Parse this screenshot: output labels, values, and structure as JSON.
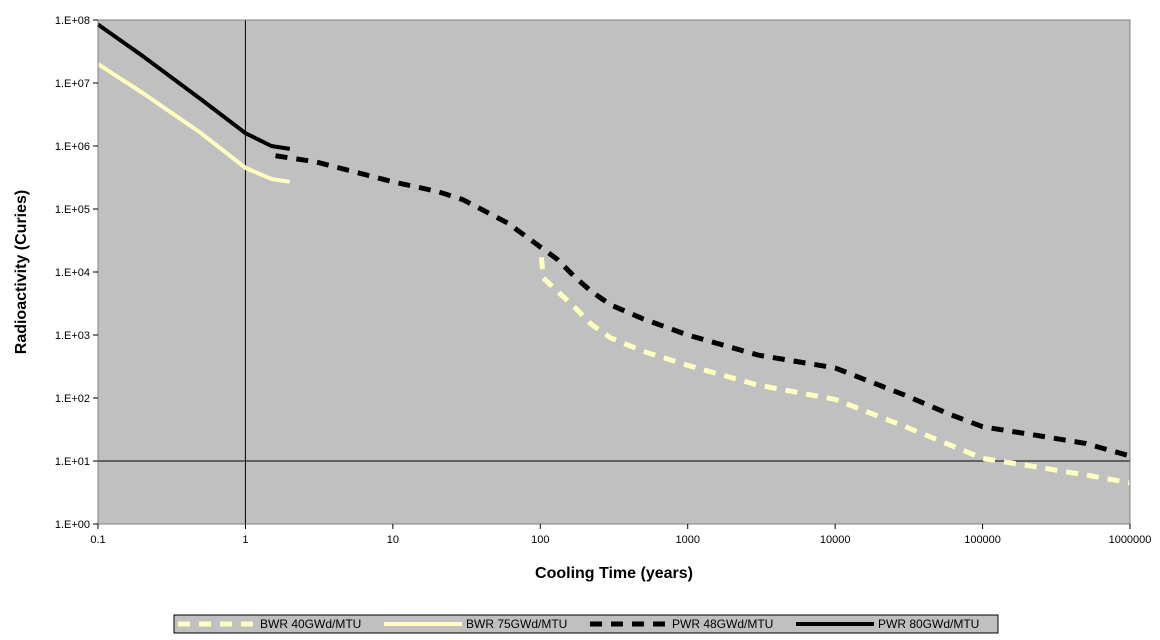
{
  "chart_data": {
    "type": "line",
    "xlabel": "Cooling Time (years)",
    "ylabel": "Radioactivity (Curies)",
    "x_scale": "log",
    "y_scale": "log",
    "xlim": [
      0.1,
      1000000
    ],
    "ylim": [
      1,
      100000000
    ],
    "x_ticks": [
      "0.1",
      "1",
      "10",
      "100",
      "1000",
      "10000",
      "100000",
      "1000000"
    ],
    "y_ticks": [
      "1.E+00",
      "1.E+01",
      "1.E+02",
      "1.E+03",
      "1.E+04",
      "1.E+05",
      "1.E+06",
      "1.E+07",
      "1.E+08"
    ],
    "plot_background": "#c0c0c0",
    "reference_lines": {
      "x": 1,
      "y": 10
    },
    "legend_position": "bottom",
    "series": [
      {
        "name": "BWR 40GWd/MTU",
        "color": "#ffffc0",
        "style": "dashed",
        "points": [
          [
            1.6,
            700000
          ],
          [
            3,
            560000
          ],
          [
            10,
            270000
          ],
          [
            20,
            190000
          ],
          [
            30,
            140000
          ],
          [
            60,
            60000
          ],
          [
            100,
            25000
          ],
          [
            105,
            8000
          ],
          [
            130,
            5000
          ],
          [
            170,
            2800
          ],
          [
            220,
            1500
          ],
          [
            300,
            900
          ],
          [
            500,
            550
          ],
          [
            1000,
            330
          ],
          [
            3000,
            160
          ],
          [
            10000,
            95
          ],
          [
            30000,
            35
          ],
          [
            60000,
            18
          ],
          [
            100000,
            11
          ],
          [
            200000,
            8.5
          ],
          [
            500000,
            6
          ],
          [
            1000000,
            4.5
          ]
        ]
      },
      {
        "name": "BWR 75GWd/MTU",
        "color": "#ffffc0",
        "style": "solid",
        "points": [
          [
            0.1,
            20000000
          ],
          [
            0.2,
            7000000
          ],
          [
            0.5,
            1600000
          ],
          [
            1,
            450000
          ],
          [
            1.5,
            300000
          ],
          [
            2,
            270000
          ]
        ]
      },
      {
        "name": "PWR 48GWd/MTU",
        "color": "#000000",
        "style": "dashed",
        "points": [
          [
            1.6,
            700000
          ],
          [
            3,
            560000
          ],
          [
            10,
            270000
          ],
          [
            20,
            190000
          ],
          [
            30,
            140000
          ],
          [
            60,
            60000
          ],
          [
            100,
            25000
          ],
          [
            130,
            16000
          ],
          [
            170,
            8500
          ],
          [
            220,
            5000
          ],
          [
            300,
            3000
          ],
          [
            500,
            1800
          ],
          [
            1000,
            1000
          ],
          [
            3000,
            480
          ],
          [
            10000,
            300
          ],
          [
            30000,
            110
          ],
          [
            60000,
            55
          ],
          [
            100000,
            35
          ],
          [
            200000,
            27
          ],
          [
            500000,
            19
          ],
          [
            1000000,
            12
          ]
        ]
      },
      {
        "name": "PWR 80GWd/MTU",
        "color": "#000000",
        "style": "solid",
        "points": [
          [
            0.1,
            85000000
          ],
          [
            0.2,
            27000000
          ],
          [
            0.5,
            5500000
          ],
          [
            1,
            1600000
          ],
          [
            1.5,
            1000000
          ],
          [
            2,
            900000
          ]
        ]
      }
    ]
  }
}
